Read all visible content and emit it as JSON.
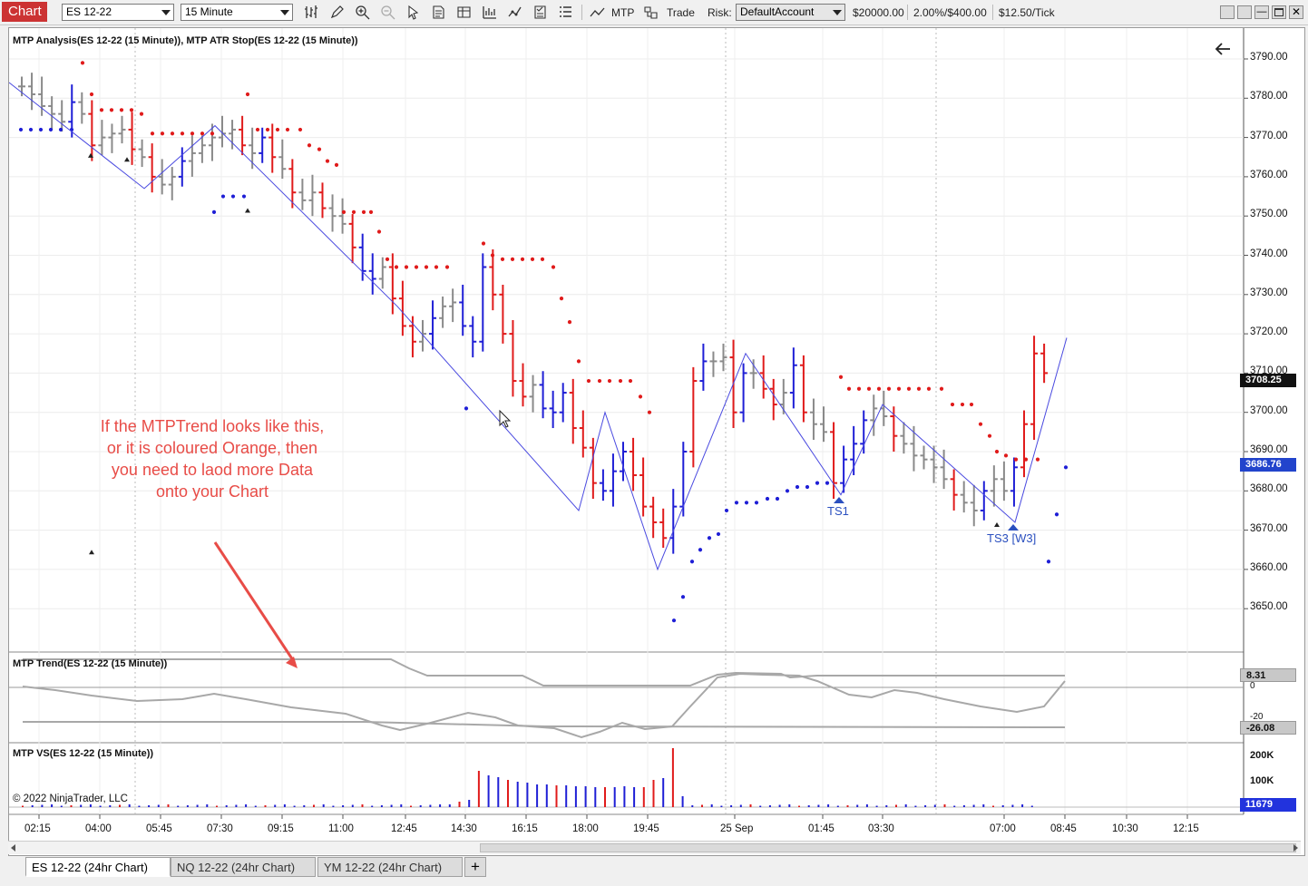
{
  "toolbar": {
    "chart_label": "Chart",
    "instrument": "ES 12-22",
    "interval": "15 Minute",
    "mtp_label": "MTP",
    "trade_label": "Trade",
    "risk_label": "Risk:",
    "account": "DefaultAccount",
    "balance": "$20000.00",
    "risk_pct": "2.00%/$400.00",
    "tick_value": "$12.50/Tick"
  },
  "panels": {
    "price_title": "MTP Analysis(ES 12-22 (15 Minute)), MTP ATR Stop(ES 12-22 (15 Minute))",
    "trend_title": "MTP Trend(ES 12-22 (15 Minute))",
    "vs_title": "MTP VS(ES 12-22 (15 Minute))",
    "copyright": "© 2022 NinjaTrader, LLC"
  },
  "price_axis": {
    "labels": [
      "3790.00",
      "3780.00",
      "3770.00",
      "3760.00",
      "3750.00",
      "3740.00",
      "3730.00",
      "3720.00",
      "3710.00",
      "3700.00",
      "3690.00",
      "3680.00",
      "3670.00",
      "3660.00",
      "3650.00"
    ],
    "last_price": "3708.25",
    "stop_price": "3686.76"
  },
  "trend_axis": {
    "zero_label": "0",
    "upper_value": "8.31",
    "lower_value": "-26.08",
    "partial_label": "-20"
  },
  "vs_axis": {
    "labels": [
      "200K",
      "100K"
    ],
    "current_volume": "11679"
  },
  "time_axis": {
    "labels": [
      "02:15",
      "04:00",
      "05:45",
      "07:30",
      "09:15",
      "11:00",
      "12:45",
      "14:30",
      "16:15",
      "18:00",
      "19:45",
      "25 Sep",
      "01:45",
      "03:30",
      "07:00",
      "08:45",
      "10:30",
      "12:15"
    ]
  },
  "annotation": {
    "text": "If the MTPTrend looks like this, or it is coloured Orange, then you need to laod more Data onto your Chart"
  },
  "signals": {
    "ts1": "TS1",
    "ts3": "TS3 [W3]"
  },
  "tabs": [
    {
      "label": "ES 12-22 (24hr Chart)"
    },
    {
      "label": "NQ 12-22 (24hr Chart)"
    },
    {
      "label": "YM 12-22 (24hr Chart)"
    }
  ],
  "tab_add": "+",
  "colors": {
    "up_bar": "#1f1fd6",
    "down_bar": "#e01b1b",
    "neutral_bar": "#8a8a8a",
    "trend_line": "#a8a8a8",
    "zigzag": "#4a4ae0",
    "annotation": "#e84c47",
    "chart_label_bg": "#cc3333"
  }
}
